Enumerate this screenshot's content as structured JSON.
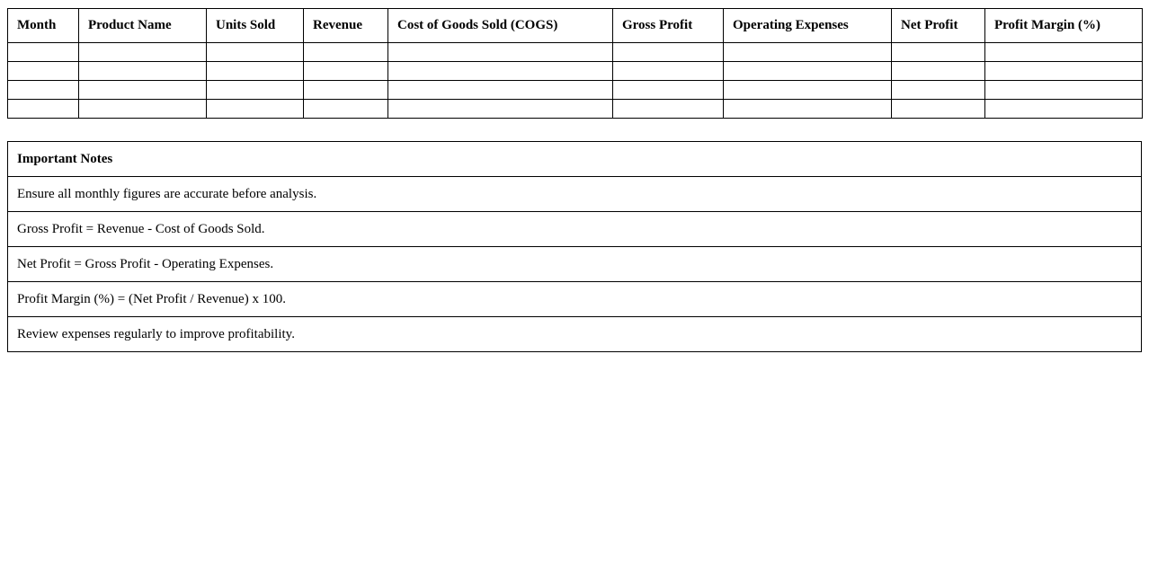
{
  "table": {
    "headers": [
      "Month",
      "Product Name",
      "Units Sold",
      "Revenue",
      "Cost of Goods Sold (COGS)",
      "Gross Profit",
      "Operating Expenses",
      "Net Profit",
      "Profit Margin (%)"
    ],
    "rows": [
      [
        "",
        "",
        "",
        "",
        "",
        "",
        "",
        "",
        ""
      ],
      [
        "",
        "",
        "",
        "",
        "",
        "",
        "",
        "",
        ""
      ],
      [
        "",
        "",
        "",
        "",
        "",
        "",
        "",
        "",
        ""
      ],
      [
        "",
        "",
        "",
        "",
        "",
        "",
        "",
        "",
        ""
      ]
    ]
  },
  "notes": {
    "title": "Important Notes",
    "items": [
      "Ensure all monthly figures are accurate before analysis.",
      "Gross Profit = Revenue - Cost of Goods Sold.",
      "Net Profit = Gross Profit - Operating Expenses.",
      "Profit Margin (%) = (Net Profit / Revenue) x 100.",
      "Review expenses regularly to improve profitability."
    ]
  }
}
